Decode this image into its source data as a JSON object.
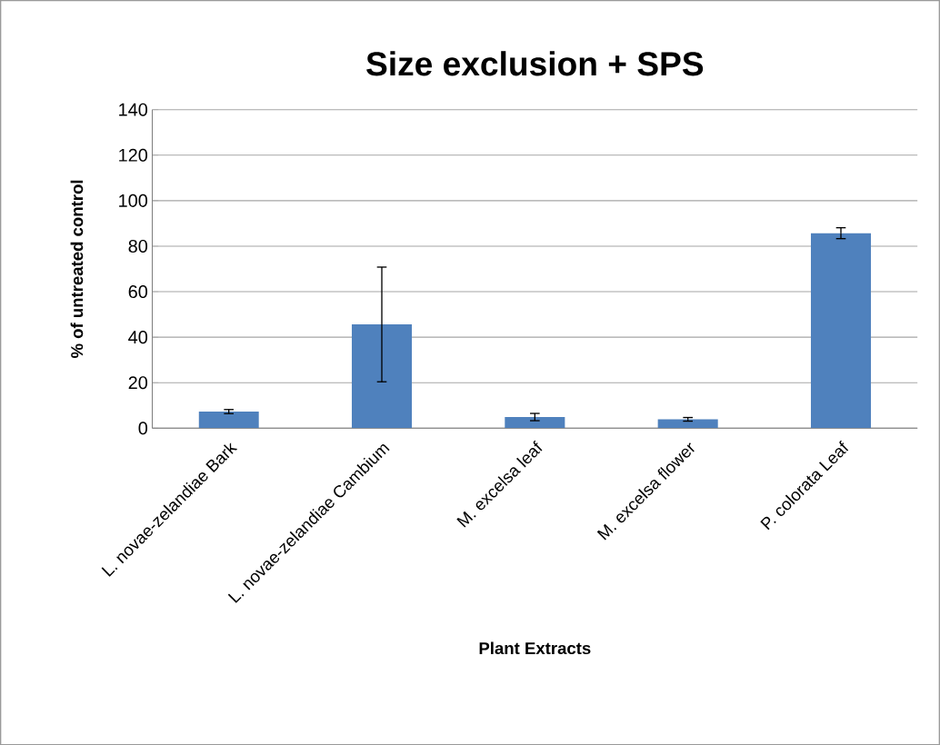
{
  "chart_data": {
    "type": "bar",
    "title": "Size exclusion + SPS",
    "xlabel": "Plant Extracts",
    "ylabel": "% of untreated control",
    "categories": [
      "L. novae-zelandiae Bark",
      "L. novae-zelandiae Cambium",
      "M. excelsa leaf",
      "M. excelsa flower",
      "P. colorata Leaf"
    ],
    "values": [
      7.3,
      45.6,
      4.9,
      3.9,
      85.7
    ],
    "errors": [
      0.9,
      25.2,
      1.6,
      0.8,
      2.4
    ],
    "color": "#4f81bd",
    "ylim": [
      0,
      140
    ],
    "yticks": [
      0,
      20,
      40,
      60,
      80,
      100,
      120,
      140
    ],
    "grid": "y"
  }
}
